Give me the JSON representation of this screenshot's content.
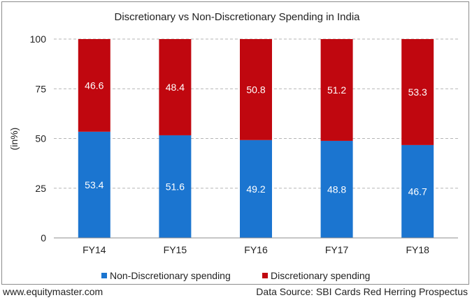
{
  "chart_data": {
    "type": "bar",
    "stacked": true,
    "title": "Discretionary vs Non-Discretionary Spending in India",
    "xlabel": "",
    "ylabel": "(in%)",
    "categories": [
      "FY14",
      "FY15",
      "FY16",
      "FY17",
      "FY18"
    ],
    "series": [
      {
        "name": "Non-Discretionary spending",
        "values": [
          53.4,
          51.6,
          49.2,
          48.8,
          46.7
        ],
        "color": "#1b75d0"
      },
      {
        "name": "Discretionary spending",
        "values": [
          46.6,
          48.4,
          50.8,
          51.2,
          53.3
        ],
        "color": "#c0070f"
      }
    ],
    "ylim": [
      0,
      100
    ],
    "yticks": [
      0,
      25,
      50,
      75,
      100
    ],
    "grid": true,
    "legend": "bottom"
  },
  "footer": {
    "website": "www.equitymaster.com",
    "source": "Data Source: SBI Cards Red Herring Prospectus"
  }
}
